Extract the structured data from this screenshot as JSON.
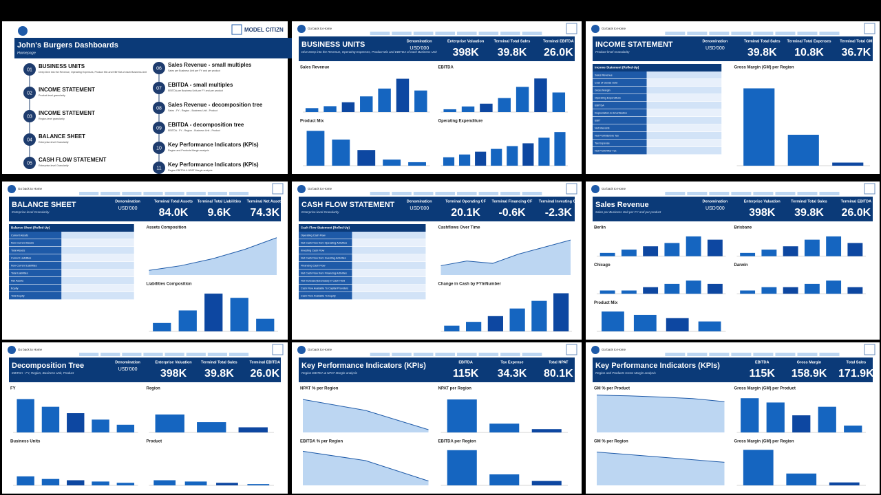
{
  "nav_label": "Go back to Home",
  "home": {
    "brand": "MODEL CITIZN",
    "title": "John's Burgers Dashboards",
    "subtitle": "Homepage",
    "items": [
      {
        "num": "01",
        "title": "BUSINESS UNITS",
        "desc": "Deep Dive into the Revenue, Operating Expenses, Product Mix and EBITDA of each Business Unit"
      },
      {
        "num": "02",
        "title": "INCOME STATEMENT",
        "desc": "Product-level granularity"
      },
      {
        "num": "03",
        "title": "INCOME STATEMENT",
        "desc": "Region-level granularity"
      },
      {
        "num": "04",
        "title": "BALANCE SHEET",
        "desc": "Enterprise-level Granularity"
      },
      {
        "num": "05",
        "title": "CASH FLOW STATEMENT",
        "desc": "Enterprise-level Granularity"
      },
      {
        "num": "06",
        "title": "Sales Revenue - small multiples",
        "desc": "Sales per Business Unit per FY and per product"
      },
      {
        "num": "07",
        "title": "EBITDA - small multiples",
        "desc": "EBITDA per Business Unit per FY and per product"
      },
      {
        "num": "08",
        "title": "Sales Revenue - decomposition tree",
        "desc": "Sales - FY - Region - Business Unit - Product"
      },
      {
        "num": "09",
        "title": "EBITDA - decomposition tree",
        "desc": "EBITDA - FY - Region - Business Unit - Product"
      },
      {
        "num": "10",
        "title": "Key Performance Indicators (KPIs)",
        "desc": "Region and Products Margin analysis"
      },
      {
        "num": "11",
        "title": "Key Performance Indicators (KPIs)",
        "desc": "Region EBITDA & NPAT Margin analysis"
      }
    ]
  },
  "panels": [
    {
      "title": "BUSINESS UNITS",
      "subtitle": "Dive Deep into the Revenue, Operating Expenses, Product Mix and EBITDA of each Business Unit",
      "denomination_label": "Denomination",
      "denomination": "USD'000",
      "kpis": [
        {
          "label": "Enterprise Valuation",
          "value": "398K"
        },
        {
          "label": "Terminal Total Sales",
          "value": "39.8K"
        },
        {
          "label": "Terminal EBITDA",
          "value": "26.0K"
        }
      ],
      "charts": [
        {
          "type": "bar",
          "title": "Sales Revenue",
          "values": [
            2,
            3,
            5,
            8,
            12,
            17,
            11
          ],
          "ylim": [
            0,
            20
          ]
        },
        {
          "type": "bar",
          "title": "EBITDA",
          "values": [
            1,
            2,
            3,
            5,
            9,
            12,
            7
          ],
          "ylim": [
            0,
            14
          ]
        },
        {
          "type": "bar",
          "title": "Product Mix",
          "values": [
            40,
            30,
            18,
            7,
            4
          ],
          "ylim": [
            0,
            45
          ]
        },
        {
          "type": "bar",
          "title": "Operating Expenditure",
          "values": [
            3,
            4,
            5,
            6,
            7,
            8,
            10,
            12
          ],
          "ylim": [
            0,
            14
          ]
        }
      ]
    },
    {
      "title": "INCOME STATEMENT",
      "subtitle": "Product-level Granularity",
      "denomination_label": "Denomination",
      "denomination": "USD'000",
      "kpis": [
        {
          "label": "Terminal Total Sales",
          "value": "39.8K"
        },
        {
          "label": "Terminal Total Expenses",
          "value": "10.8K"
        },
        {
          "label": "Terminal Total GM",
          "value": "36.7K"
        }
      ],
      "charts": [
        {
          "type": "table",
          "title": "Income Statement (Rolled-Up)",
          "rows": [
            "Sales Revenue",
            "Cost of Goods Sold",
            "Gross Margin",
            "Operating Expenditure",
            "EBITDA",
            "Depreciation & Amortisation",
            "EBIT",
            "Net Interests",
            "Net Profit Before Tax",
            "Tax Expense",
            "Net Profit After Tax"
          ]
        },
        {
          "type": "bar",
          "title": "Gross Margin (GM) per Region",
          "values": [
            25,
            10,
            1
          ],
          "ylim": [
            0,
            30
          ]
        }
      ]
    },
    {
      "title": "BALANCE SHEET",
      "subtitle": "Enterprise-level Granularity",
      "denomination_label": "Denomination",
      "denomination": "USD'000",
      "kpis": [
        {
          "label": "Terminal Total Assets",
          "value": "84.0K"
        },
        {
          "label": "Terminal Total Liabilities",
          "value": "9.6K"
        },
        {
          "label": "Terminal Net Assets",
          "value": "74.3K"
        }
      ],
      "charts": [
        {
          "type": "table",
          "title": "Balance Sheet (Rolled-Up)",
          "rows": [
            "Current Assets",
            "Non-Current Assets",
            "Total Assets",
            "Current Liabilities",
            "Non-Current Liabilities",
            "Total Liabilities",
            "Net Assets",
            "Equity",
            "Total Equity"
          ]
        },
        {
          "type": "line",
          "title": "Assets Composition",
          "values": [
            10,
            20,
            35,
            55,
            80
          ],
          "ylim": [
            0,
            90
          ]
        },
        {
          "type": "bar",
          "title": "Liabilities Composition",
          "values": [
            2,
            5,
            9,
            8,
            3
          ],
          "ylim": [
            0,
            10
          ]
        }
      ]
    },
    {
      "title": "CASH FLOW STATEMENT",
      "subtitle": "Enterprise-level Granularity",
      "denomination_label": "Denomination",
      "denomination": "USD'000",
      "kpis": [
        {
          "label": "Terminal Operating CF",
          "value": "20.1K"
        },
        {
          "label": "Terminal Financing CF",
          "value": "-0.6K"
        },
        {
          "label": "Terminal Investing CF",
          "value": "-2.3K"
        }
      ],
      "charts": [
        {
          "type": "table",
          "title": "Cash Flow Statement (Rolled-Up)",
          "rows": [
            "Operating Cash Flow",
            "Net Cash Flow from Operating Activities",
            "Investing Cash Flow",
            "Net Cash Flow from Investing Activities",
            "Financing Cash Flow",
            "Net Cash Flow from Financing Activities",
            "Net Increase/(Decrease) in Cash Held",
            "Cash Flow Available To Capital Providers",
            "Cash Flow Available To Equity"
          ]
        },
        {
          "type": "line",
          "title": "Cashflows Over Time",
          "values": [
            4,
            6,
            5,
            9,
            12,
            15
          ],
          "ylim": [
            0,
            18
          ]
        },
        {
          "type": "bar",
          "title": "Change in Cash by FYInNumber",
          "values": [
            3,
            5,
            8,
            12,
            16,
            20
          ],
          "ylim": [
            0,
            22
          ]
        }
      ]
    },
    {
      "title": "Sales Revenue",
      "subtitle": "Sales per Business Unit per FY and per product",
      "denomination_label": "Denomination",
      "denomination": "USD'000",
      "kpis": [
        {
          "label": "Enterprise Valuation",
          "value": "398K"
        },
        {
          "label": "Terminal Total Sales",
          "value": "39.8K"
        },
        {
          "label": "Terminal EBITDA",
          "value": "26.0K"
        }
      ],
      "charts": [
        {
          "type": "bar",
          "title": "Berlin",
          "values": [
            1,
            2,
            3,
            4,
            6,
            5
          ],
          "ylim": [
            0,
            7
          ]
        },
        {
          "type": "bar",
          "title": "Brisbane",
          "values": [
            1,
            2,
            3,
            5,
            6,
            4
          ],
          "ylim": [
            0,
            7
          ]
        },
        {
          "type": "bar",
          "title": "Chicago",
          "values": [
            1,
            1,
            2,
            3,
            4,
            3
          ],
          "ylim": [
            0,
            7
          ]
        },
        {
          "type": "bar",
          "title": "Darwin",
          "values": [
            1,
            2,
            2,
            3,
            4,
            2
          ],
          "ylim": [
            0,
            7
          ]
        },
        {
          "type": "bar",
          "title": "Product Mix",
          "values": [
            6,
            5,
            4,
            3
          ],
          "ylim": [
            0,
            7
          ]
        }
      ]
    },
    {
      "title": "Decomposition Tree",
      "subtitle": "EBITDA - FY, Region, Business Unit, Product",
      "denomination_label": "Denomination",
      "denomination": "USD'000",
      "kpis": [
        {
          "label": "Enterprise Valuation",
          "value": "398K"
        },
        {
          "label": "Terminal Total Sales",
          "value": "39.8K"
        },
        {
          "label": "Terminal EBITDA",
          "value": "26.0K"
        }
      ],
      "charts": [
        {
          "type": "bar",
          "title": "FY",
          "values": [
            26,
            20,
            15,
            10,
            6
          ],
          "ylim": [
            0,
            30
          ]
        },
        {
          "type": "bar",
          "title": "Region",
          "values": [
            14,
            8,
            4
          ],
          "ylim": [
            0,
            30
          ]
        },
        {
          "type": "bar",
          "title": "Business Units",
          "values": [
            7,
            5,
            4,
            3,
            2
          ],
          "ylim": [
            0,
            30
          ]
        },
        {
          "type": "bar",
          "title": "Product",
          "values": [
            4,
            3,
            2,
            1
          ],
          "ylim": [
            0,
            30
          ]
        }
      ]
    },
    {
      "title": "Key Performance Indicators (KPIs)",
      "subtitle": "Region EBITDA & NPAT Margin analysis",
      "denomination_label": "",
      "denomination": "",
      "kpis": [
        {
          "label": "EBITDA",
          "value": "115K"
        },
        {
          "label": "Tax Expense",
          "value": "34.3K"
        },
        {
          "label": "Total NPAT",
          "value": "80.1K"
        }
      ],
      "charts": [
        {
          "type": "line",
          "title": "NPAT % per Region",
          "values": [
            60,
            40,
            5
          ],
          "ylim": [
            0,
            70
          ]
        },
        {
          "type": "bar",
          "title": "NPAT per Region",
          "values": [
            30,
            8,
            3
          ],
          "ylim": [
            0,
            35
          ]
        },
        {
          "type": "line",
          "title": "EBITDA % per Region",
          "values": [
            62,
            45,
            8
          ],
          "ylim": [
            0,
            70
          ]
        },
        {
          "type": "bar",
          "title": "EBITDA per Region",
          "values": [
            32,
            10,
            4
          ],
          "ylim": [
            0,
            35
          ]
        }
      ]
    },
    {
      "title": "Key Performance Indicators (KPIs)",
      "subtitle": "Region and Products Gross Margin analysis",
      "denomination_label": "",
      "denomination": "",
      "kpis": [
        {
          "label": "EBITDA",
          "value": "115K"
        },
        {
          "label": "Gross Margin",
          "value": "158.9K"
        },
        {
          "label": "Total Sales",
          "value": "171.9K"
        }
      ],
      "charts": [
        {
          "type": "line",
          "title": "GM % per Product",
          "values": [
            97,
            95,
            92,
            88,
            80
          ],
          "ylim": [
            0,
            100
          ]
        },
        {
          "type": "bar",
          "title": "Gross Margin (GM) per Product",
          "values": [
            40,
            35,
            20,
            30,
            8
          ],
          "ylim": [
            0,
            45
          ]
        },
        {
          "type": "line",
          "title": "GM % per Region",
          "values": [
            93,
            91,
            89
          ],
          "ylim": [
            80,
            95
          ]
        },
        {
          "type": "bar",
          "title": "Gross Margin (GM) per Region",
          "values": [
            60,
            20,
            5
          ],
          "ylim": [
            0,
            65
          ]
        }
      ]
    }
  ]
}
